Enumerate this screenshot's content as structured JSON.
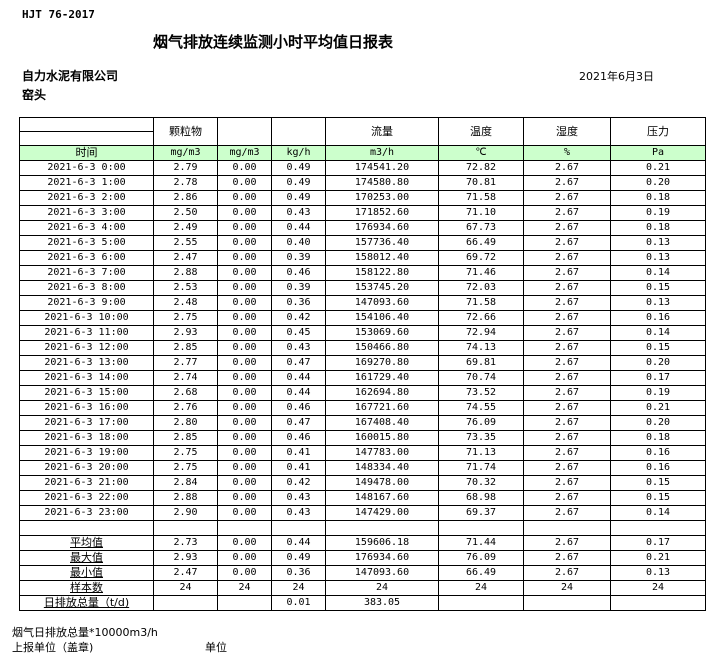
{
  "standard": "HJT  76-2017",
  "title": "烟气排放连续监测小时平均值日报表",
  "company": "自力水泥有限公司",
  "date": "2021年6月3日",
  "source": "窑头",
  "table": {
    "headers": [
      "",
      "颗粒物",
      "",
      "",
      "流量",
      "温度",
      "湿度",
      "压力"
    ],
    "units": [
      "时间",
      "mg/m3",
      "mg/m3",
      "kg/h",
      "m3/h",
      "℃",
      "%",
      "Pa"
    ],
    "header_bg": "#ccffcc",
    "rows": [
      [
        "2021-6-3 0:00",
        "2.79",
        "0.00",
        "0.49",
        "174541.20",
        "72.82",
        "2.67",
        "0.21"
      ],
      [
        "2021-6-3 1:00",
        "2.78",
        "0.00",
        "0.49",
        "174580.80",
        "70.81",
        "2.67",
        "0.20"
      ],
      [
        "2021-6-3 2:00",
        "2.86",
        "0.00",
        "0.49",
        "170253.00",
        "71.58",
        "2.67",
        "0.18"
      ],
      [
        "2021-6-3 3:00",
        "2.50",
        "0.00",
        "0.43",
        "171852.60",
        "71.10",
        "2.67",
        "0.19"
      ],
      [
        "2021-6-3 4:00",
        "2.49",
        "0.00",
        "0.44",
        "176934.60",
        "67.73",
        "2.67",
        "0.18"
      ],
      [
        "2021-6-3 5:00",
        "2.55",
        "0.00",
        "0.40",
        "157736.40",
        "66.49",
        "2.67",
        "0.13"
      ],
      [
        "2021-6-3 6:00",
        "2.47",
        "0.00",
        "0.39",
        "158012.40",
        "69.72",
        "2.67",
        "0.13"
      ],
      [
        "2021-6-3 7:00",
        "2.88",
        "0.00",
        "0.46",
        "158122.80",
        "71.46",
        "2.67",
        "0.14"
      ],
      [
        "2021-6-3 8:00",
        "2.53",
        "0.00",
        "0.39",
        "153745.20",
        "72.03",
        "2.67",
        "0.15"
      ],
      [
        "2021-6-3 9:00",
        "2.48",
        "0.00",
        "0.36",
        "147093.60",
        "71.58",
        "2.67",
        "0.13"
      ],
      [
        "2021-6-3 10:00",
        "2.75",
        "0.00",
        "0.42",
        "154106.40",
        "72.66",
        "2.67",
        "0.16"
      ],
      [
        "2021-6-3 11:00",
        "2.93",
        "0.00",
        "0.45",
        "153069.60",
        "72.94",
        "2.67",
        "0.14"
      ],
      [
        "2021-6-3 12:00",
        "2.85",
        "0.00",
        "0.43",
        "150466.80",
        "74.13",
        "2.67",
        "0.15"
      ],
      [
        "2021-6-3 13:00",
        "2.77",
        "0.00",
        "0.47",
        "169270.80",
        "69.81",
        "2.67",
        "0.20"
      ],
      [
        "2021-6-3 14:00",
        "2.74",
        "0.00",
        "0.44",
        "161729.40",
        "70.74",
        "2.67",
        "0.17"
      ],
      [
        "2021-6-3 15:00",
        "2.68",
        "0.00",
        "0.44",
        "162694.80",
        "73.52",
        "2.67",
        "0.19"
      ],
      [
        "2021-6-3 16:00",
        "2.76",
        "0.00",
        "0.46",
        "167721.60",
        "74.55",
        "2.67",
        "0.21"
      ],
      [
        "2021-6-3 17:00",
        "2.80",
        "0.00",
        "0.47",
        "167408.40",
        "76.09",
        "2.67",
        "0.20"
      ],
      [
        "2021-6-3 18:00",
        "2.85",
        "0.00",
        "0.46",
        "160015.80",
        "73.35",
        "2.67",
        "0.18"
      ],
      [
        "2021-6-3 19:00",
        "2.75",
        "0.00",
        "0.41",
        "147783.00",
        "71.13",
        "2.67",
        "0.16"
      ],
      [
        "2021-6-3 20:00",
        "2.75",
        "0.00",
        "0.41",
        "148334.40",
        "71.74",
        "2.67",
        "0.16"
      ],
      [
        "2021-6-3 21:00",
        "2.84",
        "0.00",
        "0.42",
        "149478.00",
        "70.32",
        "2.67",
        "0.15"
      ],
      [
        "2021-6-3 22:00",
        "2.88",
        "0.00",
        "0.43",
        "148167.60",
        "68.98",
        "2.67",
        "0.15"
      ],
      [
        "2021-6-3 23:00",
        "2.90",
        "0.00",
        "0.43",
        "147429.00",
        "69.37",
        "2.67",
        "0.14"
      ]
    ],
    "summary": [
      [
        "平均值",
        "2.73",
        "0.00",
        "0.44",
        "159606.18",
        "71.44",
        "2.67",
        "0.17"
      ],
      [
        "最大值",
        "2.93",
        "0.00",
        "0.49",
        "176934.60",
        "76.09",
        "2.67",
        "0.21"
      ],
      [
        "最小值",
        "2.47",
        "0.00",
        "0.36",
        "147093.60",
        "66.49",
        "2.67",
        "0.13"
      ],
      [
        "样本数",
        "24",
        "24",
        "24",
        "24",
        "24",
        "24",
        "24"
      ],
      [
        "日排放总量（t/d)",
        "",
        "",
        "0.01",
        "383.05",
        "",
        "",
        ""
      ]
    ]
  },
  "footer": {
    "note": "烟气日排放总量*10000m3/h",
    "reporter": "上报单位（盖章)",
    "unit": "单位"
  }
}
